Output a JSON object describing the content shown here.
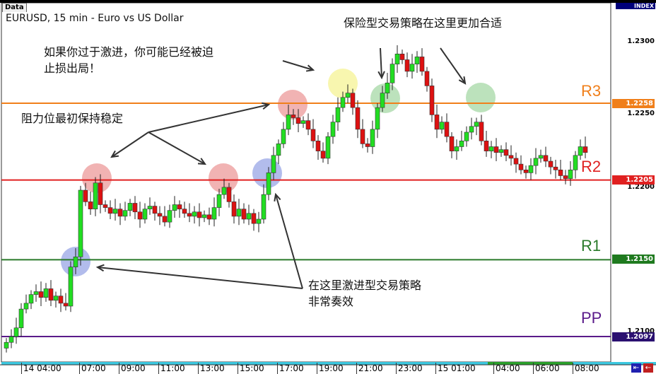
{
  "window": {
    "tab_label": "Data",
    "title": "EURUSD, 15 min - Euro vs US Dollar",
    "index_label": "INDEX"
  },
  "price_axis": {
    "ticks": [
      "1.2300",
      "1.2250",
      "1.2200",
      "1.2100"
    ]
  },
  "levels": [
    {
      "name": "R3",
      "value": "1.2258",
      "color": "#f07f1a"
    },
    {
      "name": "R2",
      "value": "1.2205",
      "color": "#e02020"
    },
    {
      "name": "R1",
      "value": "1.2150",
      "color": "#2a7a2a"
    },
    {
      "name": "PP",
      "value": "1.2097",
      "color": "#5a1a8a"
    }
  ],
  "time_axis": {
    "labels": [
      "14 04:00",
      "07:00",
      "09:00",
      "11:00",
      "13:00",
      "15:00",
      "17:00",
      "19:00",
      "21:00",
      "23:00",
      "15 01:00",
      "04:00",
      "06:00",
      "08:00"
    ]
  },
  "annotations": {
    "aggressive_warning": "如果你过于激进，你可能已经被迫\n止损出局！",
    "conservative": "保险型交易策略在这里更加合适",
    "resistance": "阻力位最初保持稳定",
    "aggressive_works": "在这里激进型交易策略\n非常奏效"
  },
  "chart_data": {
    "type": "candlestick",
    "symbol": "EURUSD",
    "timeframe": "15 min",
    "ylim": [
      1.2085,
      1.2325
    ],
    "candle_colors": {
      "up": "#22dd22",
      "down": "#dd1111"
    },
    "highlight_colors": {
      "red": "#e88080",
      "blue": "#7f8fe0",
      "yellow": "#f4f07a",
      "green": "#8fcf8f"
    },
    "closes": [
      1.2093,
      1.2097,
      1.2103,
      1.2116,
      1.212,
      1.2126,
      1.2128,
      1.2124,
      1.213,
      1.2122,
      1.2125,
      1.212,
      1.2118,
      1.2145,
      1.2152,
      1.2198,
      1.219,
      1.2185,
      1.2203,
      1.2188,
      1.2186,
      1.2182,
      1.2185,
      1.218,
      1.2184,
      1.2189,
      1.2183,
      1.2178,
      1.2185,
      1.2187,
      1.2182,
      1.218,
      1.2176,
      1.2184,
      1.2188,
      1.2185,
      1.2182,
      1.218,
      1.2183,
      1.2179,
      1.2181,
      1.2178,
      1.2186,
      1.2195,
      1.22,
      1.219,
      1.218,
      1.2185,
      1.2178,
      1.2182,
      1.2175,
      1.2178,
      1.2195,
      1.221,
      1.2222,
      1.223,
      1.224,
      1.225,
      1.2248,
      1.2244,
      1.2246,
      1.224,
      1.2232,
      1.2225,
      1.222,
      1.2235,
      1.2245,
      1.2255,
      1.2262,
      1.2265,
      1.2255,
      1.224,
      1.223,
      1.2228,
      1.224,
      1.2255,
      1.2265,
      1.2272,
      1.2285,
      1.2292,
      1.2288,
      1.228,
      1.2285,
      1.229,
      1.228,
      1.227,
      1.225,
      1.224,
      1.2245,
      1.2235,
      1.2225,
      1.2228,
      1.2232,
      1.2238,
      1.2242,
      1.2245,
      1.2232,
      1.2225,
      1.2228,
      1.2224,
      1.2226,
      1.2222,
      1.222,
      1.2216,
      1.2212,
      1.221,
      1.2215,
      1.222,
      1.2222,
      1.2218,
      1.2214,
      1.2212,
      1.2208,
      1.2206,
      1.2212,
      1.2222,
      1.2228,
      1.2224
    ]
  }
}
